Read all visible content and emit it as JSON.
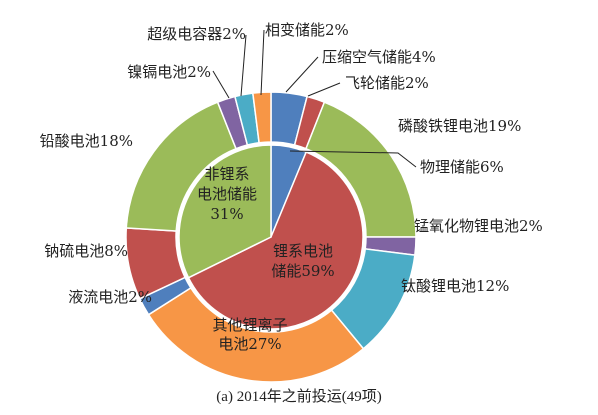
{
  "chart_data": {
    "type": "pie",
    "variant": "donut-nested",
    "caption": "(a) 2014年之前投运(49项)",
    "inner_ring": [
      {
        "name": "物理储能",
        "label": "物理储能6%",
        "value": 6,
        "color": "#4f7fbd"
      },
      {
        "name": "锂系电池储能",
        "label": "锂系电池储能59%",
        "value": 59,
        "color": "#c0504d"
      },
      {
        "name": "非锂系电池储能",
        "label": "非锂系电池储能31%",
        "value": 31,
        "color": "#9bbb59"
      }
    ],
    "outer_ring": [
      {
        "name": "压缩空气储能",
        "label": "压缩空气储能4%",
        "value": 4,
        "color": "#4f7fbd"
      },
      {
        "name": "飞轮储能",
        "label": "飞轮储能2%",
        "value": 2,
        "color": "#c0504d"
      },
      {
        "name": "磷酸铁锂电池",
        "label": "磷酸铁锂电池19%",
        "value": 19,
        "color": "#9bbb59"
      },
      {
        "name": "锰氧化物锂电池",
        "label": "锰氧化物锂电池2%",
        "value": 2,
        "color": "#8064a2"
      },
      {
        "name": "钛酸锂电池",
        "label": "钛酸锂电池12%",
        "value": 12,
        "color": "#4bacc6"
      },
      {
        "name": "其他锂离子电池",
        "label": "其他锂离子电池27%",
        "value": 27,
        "color": "#f79646"
      },
      {
        "name": "液流电池",
        "label": "液流电池2%",
        "value": 2,
        "color": "#4f7fbd"
      },
      {
        "name": "钠硫电池",
        "label": "钠硫电池8%",
        "value": 8,
        "color": "#c0504d"
      },
      {
        "name": "铅酸电池",
        "label": "铅酸电池18%",
        "value": 18,
        "color": "#9bbb59"
      },
      {
        "name": "镍镉电池",
        "label": "镍镉电池2%",
        "value": 2,
        "color": "#8064a2"
      },
      {
        "name": "超级电容器",
        "label": "超级电容器2%",
        "value": 2,
        "color": "#4bacc6"
      },
      {
        "name": "相变储能",
        "label": "相变储能2%",
        "value": 2,
        "color": "#f79646"
      }
    ]
  }
}
